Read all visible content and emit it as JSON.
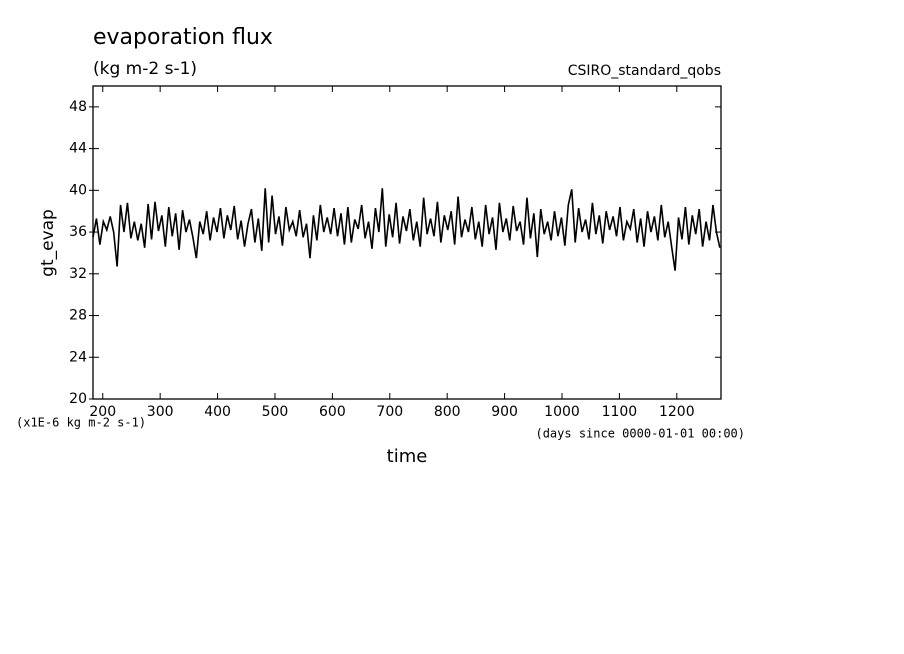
{
  "chart_data": {
    "type": "line",
    "title": "evaporation flux",
    "subtitle": "(kg m-2 s-1)",
    "dataset": "CSIRO_standard_qobs",
    "y_label": "gt_evap",
    "x_label": "time",
    "y_units": "(x1E-6 kg m-2 s-1)",
    "x_units": "(days since 0000-01-01 00:00)",
    "xlim": [
      183,
      1277
    ],
    "ylim": [
      20,
      50
    ],
    "xticks": [
      200,
      300,
      400,
      500,
      600,
      700,
      800,
      900,
      1000,
      1100,
      1200
    ],
    "yticks": [
      20,
      24,
      28,
      32,
      36,
      40,
      44,
      48
    ],
    "x": [
      183,
      189,
      195,
      201,
      207,
      213,
      219,
      225,
      231,
      237,
      243,
      249,
      255,
      261,
      267,
      273,
      279,
      285,
      291,
      297,
      303,
      309,
      315,
      321,
      327,
      333,
      339,
      345,
      351,
      357,
      363,
      369,
      375,
      381,
      387,
      393,
      399,
      405,
      411,
      417,
      423,
      429,
      435,
      441,
      447,
      453,
      459,
      465,
      471,
      477,
      483,
      489,
      495,
      501,
      507,
      513,
      519,
      525,
      531,
      537,
      543,
      549,
      555,
      561,
      567,
      573,
      579,
      585,
      591,
      597,
      603,
      609,
      615,
      621,
      627,
      633,
      639,
      645,
      651,
      657,
      663,
      669,
      675,
      681,
      687,
      693,
      699,
      705,
      711,
      717,
      723,
      729,
      735,
      741,
      747,
      753,
      759,
      765,
      771,
      777,
      783,
      789,
      795,
      801,
      807,
      813,
      819,
      825,
      831,
      837,
      843,
      849,
      855,
      861,
      867,
      873,
      879,
      885,
      891,
      897,
      903,
      909,
      915,
      921,
      927,
      933,
      939,
      945,
      951,
      957,
      963,
      969,
      975,
      981,
      987,
      993,
      999,
      1005,
      1011,
      1017,
      1023,
      1029,
      1035,
      1041,
      1047,
      1053,
      1059,
      1065,
      1071,
      1077,
      1083,
      1089,
      1095,
      1101,
      1107,
      1113,
      1119,
      1125,
      1131,
      1137,
      1143,
      1149,
      1155,
      1161,
      1167,
      1173,
      1179,
      1185,
      1191,
      1197,
      1203,
      1209,
      1215,
      1221,
      1227,
      1233,
      1239,
      1245,
      1251,
      1257,
      1263,
      1269,
      1275
    ],
    "series": [
      {
        "name": "gt_evap",
        "color": "#000000",
        "values": [
          35.5,
          37.3,
          34.8,
          37.0,
          36.2,
          37.5,
          36.0,
          32.7,
          38.6,
          36.0,
          38.8,
          35.4,
          37.0,
          35.2,
          36.8,
          34.5,
          38.7,
          35.3,
          38.9,
          36.1,
          37.6,
          34.6,
          38.4,
          35.6,
          37.8,
          34.3,
          38.1,
          36.0,
          37.2,
          35.5,
          33.5,
          37.0,
          35.8,
          38.0,
          35.2,
          37.4,
          36.0,
          38.3,
          35.4,
          37.6,
          36.2,
          38.5,
          35.3,
          37.1,
          34.6,
          36.8,
          38.2,
          35.0,
          37.3,
          34.2,
          40.2,
          35.0,
          39.5,
          35.8,
          37.5,
          34.7,
          38.4,
          36.2,
          37.0,
          35.6,
          38.1,
          35.5,
          36.8,
          33.5,
          37.6,
          35.2,
          38.6,
          36.0,
          37.4,
          35.8,
          38.3,
          35.6,
          37.8,
          34.8,
          38.4,
          35.0,
          37.2,
          36.3,
          38.6,
          35.4,
          37.0,
          34.4,
          38.3,
          36.0,
          40.2,
          34.6,
          37.7,
          35.5,
          38.8,
          34.9,
          37.5,
          36.1,
          38.2,
          35.2,
          37.0,
          34.6,
          39.3,
          35.8,
          37.3,
          35.6,
          38.9,
          35.0,
          37.6,
          36.2,
          38.0,
          34.8,
          39.4,
          35.5,
          37.2,
          36.0,
          38.4,
          35.3,
          37.0,
          34.6,
          38.6,
          35.8,
          37.4,
          34.3,
          38.8,
          36.0,
          37.3,
          35.2,
          38.5,
          36.1,
          37.0,
          34.8,
          39.3,
          35.4,
          37.8,
          33.6,
          38.2,
          35.8,
          37.0,
          35.2,
          38.0,
          35.6,
          37.4,
          34.7,
          38.6,
          40.1,
          35.0,
          38.3,
          36.0,
          37.2,
          35.3,
          38.8,
          35.8,
          37.6,
          34.9,
          38.0,
          36.2,
          37.5,
          35.6,
          38.4,
          35.2,
          37.0,
          36.3,
          38.2,
          35.0,
          37.3,
          34.6,
          38.0,
          36.0,
          37.5,
          35.2,
          38.6,
          35.5,
          37.0,
          34.6,
          32.3,
          37.4,
          35.3,
          38.4,
          34.8,
          37.6,
          35.8,
          38.2,
          34.6,
          37.0,
          35.2,
          38.6,
          36.0,
          34.5
        ]
      }
    ]
  }
}
